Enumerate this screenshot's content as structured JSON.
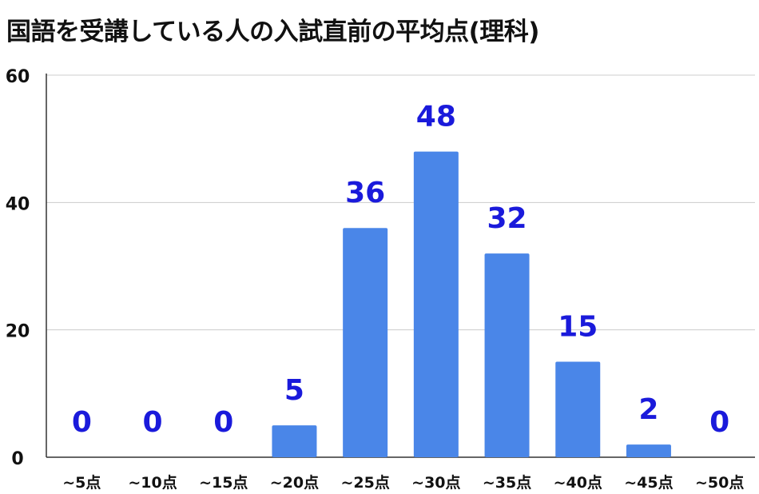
{
  "colors": {
    "bar": "#4a86e8",
    "data_label": "#1a1adb",
    "text": "#111111",
    "grid": "#cccccc",
    "axis": "#333333"
  },
  "chart_data": {
    "type": "bar",
    "title": "国語を受講している人の入試直前の平均点(理科)",
    "xlabel": "",
    "ylabel": "",
    "categories": [
      "~5点",
      "~10点",
      "~15点",
      "~20点",
      "~25点",
      "~30点",
      "~35点",
      "~40点",
      "~45点",
      "~50点"
    ],
    "values": [
      0,
      0,
      0,
      5,
      36,
      48,
      32,
      15,
      2,
      0
    ],
    "yticks": [
      0,
      20,
      40,
      60
    ],
    "ylim": [
      0,
      60
    ],
    "grid": true,
    "legend": "none",
    "data_labels": true
  }
}
